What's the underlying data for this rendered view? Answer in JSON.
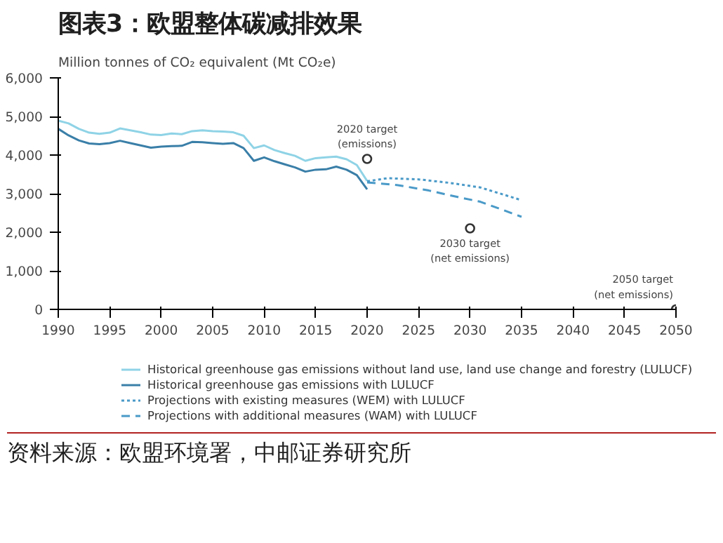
{
  "chart_data": {
    "type": "line",
    "title": "图表3：欧盟整体碳减排效果",
    "ylabel": "Million tonnes of CO₂ equivalent (Mt CO₂e)",
    "x": [
      1990,
      1991,
      1992,
      1993,
      1994,
      1995,
      1996,
      1997,
      1998,
      1999,
      2000,
      2001,
      2002,
      2003,
      2004,
      2005,
      2006,
      2007,
      2008,
      2009,
      2010,
      2011,
      2012,
      2013,
      2014,
      2015,
      2016,
      2017,
      2018,
      2019,
      2020
    ],
    "series": [
      {
        "name": "Historical greenhouse gas emissions without land use, land use change and forestry (LULUCF)",
        "color": "#8fd3e6",
        "line_style": "solid",
        "values": [
          4890,
          4820,
          4680,
          4580,
          4550,
          4580,
          4690,
          4640,
          4590,
          4530,
          4520,
          4560,
          4540,
          4620,
          4640,
          4620,
          4610,
          4590,
          4500,
          4180,
          4250,
          4130,
          4050,
          3980,
          3850,
          3920,
          3940,
          3960,
          3890,
          3740,
          3330
        ]
      },
      {
        "name": "Historical greenhouse gas emissions with LULUCF",
        "color": "#3a7fa8",
        "line_style": "solid",
        "values": [
          4680,
          4510,
          4380,
          4300,
          4280,
          4310,
          4370,
          4310,
          4250,
          4190,
          4220,
          4230,
          4240,
          4340,
          4330,
          4310,
          4290,
          4310,
          4180,
          3850,
          3940,
          3840,
          3760,
          3680,
          3570,
          3620,
          3630,
          3700,
          3620,
          3480,
          3110
        ]
      },
      {
        "name": "Projections with existing measures (WEM) with LULUCF",
        "color": "#4a9ac8",
        "line_style": "dotted",
        "x": [
          2020,
          2022,
          2025,
          2028,
          2031,
          2035
        ],
        "values": [
          3320,
          3400,
          3370,
          3280,
          3160,
          2830
        ]
      },
      {
        "name": "Projections with additional measures (WAM) with LULUCF",
        "color": "#4a9ac8",
        "line_style": "dashed",
        "x": [
          2020,
          2023,
          2026,
          2029,
          2031,
          2035
        ],
        "values": [
          3290,
          3220,
          3080,
          2900,
          2790,
          2400
        ]
      }
    ],
    "xlim": [
      1990,
      2050
    ],
    "xticks": [
      1990,
      1995,
      2000,
      2005,
      2010,
      2015,
      2020,
      2025,
      2030,
      2035,
      2040,
      2045,
      2050
    ],
    "ylim": [
      0,
      6000
    ],
    "yticks": [
      0,
      {
        "value": 1000,
        "label": "1,000"
      },
      {
        "value": 2000,
        "label": "2,000"
      },
      {
        "value": 3000,
        "label": "3,000"
      },
      {
        "value": 4000,
        "label": "4,000"
      },
      {
        "value": 5000,
        "label": "5,000"
      },
      {
        "value": 6000,
        "label": "6,000"
      }
    ],
    "grid": false,
    "legend": "bottom",
    "annotations": [
      {
        "text": "2020 target\n(emissions)",
        "x": 2020,
        "y": 3900
      },
      {
        "text": "2030 target\n(net emissions)",
        "x": 2030,
        "y": 2100
      },
      {
        "text": "2050 target\n(net emissions)",
        "x": 2050,
        "y": 0
      },
      "资料来源：欧盟环境署，中邮证券研究所"
    ]
  }
}
